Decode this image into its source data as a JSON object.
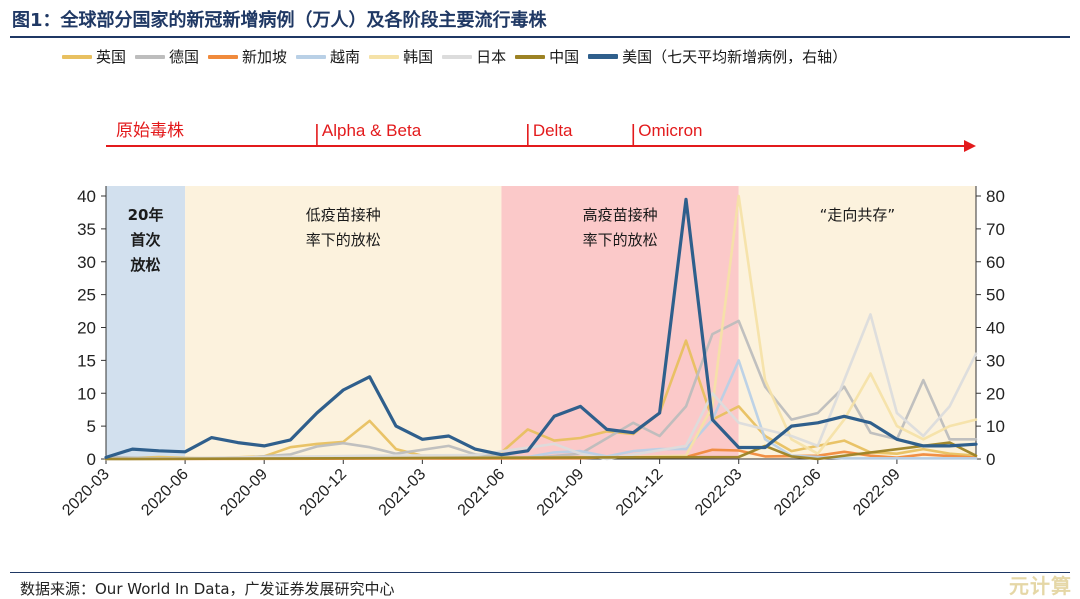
{
  "title": "图1：全球部分国家的新冠新增病例（万人）及各阶段主要流行毒株",
  "source": "数据来源：Our World In Data，广发证券发展研究中心",
  "watermark": "元计算",
  "chart_data": {
    "type": "line",
    "x_unit": "month",
    "x_start": "2020-03",
    "x_end": "2022-12",
    "x_ticks": [
      "2020-03",
      "2020-06",
      "2020-09",
      "2020-12",
      "2021-03",
      "2021-06",
      "2021-09",
      "2021-12",
      "2022-03",
      "2022-06",
      "2022-09"
    ],
    "y_left": {
      "min": 0,
      "max": 40,
      "ticks": [
        0,
        5,
        10,
        15,
        20,
        25,
        30,
        35,
        40
      ]
    },
    "y_right": {
      "min": 0,
      "max": 80,
      "ticks": [
        0,
        10,
        20,
        30,
        40,
        50,
        60,
        70,
        80
      ]
    },
    "grid": false,
    "legend_position": "top",
    "phases": [
      {
        "label": "原始毒株",
        "start": "2020-03"
      },
      {
        "label": "Alpha & Beta",
        "start": "2020-11"
      },
      {
        "label": "Delta",
        "start": "2021-07"
      },
      {
        "label": "Omicron",
        "start": "2021-11"
      }
    ],
    "regions": [
      {
        "start": "2020-03",
        "end": "2020-06",
        "color": "#d2e0ee",
        "lines": [
          "20年",
          "首次",
          "放松"
        ],
        "bold": true
      },
      {
        "start": "2020-06",
        "end": "2021-06",
        "color": "#fcf2dd",
        "lines": [
          "低疫苗接种",
          "率下的放松"
        ],
        "bold": false
      },
      {
        "start": "2021-06",
        "end": "2022-03",
        "color": "#fbc9c9",
        "lines": [
          "高疫苗接种",
          "率下的放松"
        ],
        "bold": false
      },
      {
        "start": "2022-03",
        "end": "2022-12",
        "color": "#fcf2dd",
        "lines": [
          "“走向共存”"
        ],
        "bold": false
      }
    ],
    "series": [
      {
        "name": "英国",
        "color": "#e8c060",
        "axis": "left",
        "points": [
          [
            "2020-03",
            0
          ],
          [
            "2020-05",
            0.3
          ],
          [
            "2020-07",
            0.1
          ],
          [
            "2020-09",
            0.4
          ],
          [
            "2020-10",
            1.8
          ],
          [
            "2020-11",
            2.3
          ],
          [
            "2020-12",
            2.6
          ],
          [
            "2021-01",
            5.8
          ],
          [
            "2021-02",
            1.5
          ],
          [
            "2021-03",
            0.5
          ],
          [
            "2021-05",
            0.3
          ],
          [
            "2021-06",
            1
          ],
          [
            "2021-07",
            4.5
          ],
          [
            "2021-08",
            2.8
          ],
          [
            "2021-09",
            3.2
          ],
          [
            "2021-10",
            4.2
          ],
          [
            "2021-11",
            3.8
          ],
          [
            "2021-12",
            7
          ],
          [
            "2022-01",
            18
          ],
          [
            "2022-02",
            6
          ],
          [
            "2022-03",
            8
          ],
          [
            "2022-04",
            3.5
          ],
          [
            "2022-05",
            1.2
          ],
          [
            "2022-06",
            2
          ],
          [
            "2022-07",
            2.8
          ],
          [
            "2022-08",
            1
          ],
          [
            "2022-09",
            0.8
          ],
          [
            "2022-10",
            1.5
          ],
          [
            "2022-11",
            0.8
          ],
          [
            "2022-12",
            0.5
          ]
        ]
      },
      {
        "name": "德国",
        "color": "#bdbdbd",
        "axis": "left",
        "points": [
          [
            "2020-03",
            0.3
          ],
          [
            "2020-05",
            0.1
          ],
          [
            "2020-08",
            0.1
          ],
          [
            "2020-10",
            0.7
          ],
          [
            "2020-11",
            1.9
          ],
          [
            "2020-12",
            2.4
          ],
          [
            "2021-01",
            1.8
          ],
          [
            "2021-02",
            0.8
          ],
          [
            "2021-04",
            2
          ],
          [
            "2021-05",
            0.7
          ],
          [
            "2021-07",
            0.1
          ],
          [
            "2021-09",
            0.8
          ],
          [
            "2021-11",
            5.5
          ],
          [
            "2021-12",
            3.5
          ],
          [
            "2022-01",
            8
          ],
          [
            "2022-02",
            19
          ],
          [
            "2022-03",
            21
          ],
          [
            "2022-04",
            11
          ],
          [
            "2022-05",
            6
          ],
          [
            "2022-06",
            7
          ],
          [
            "2022-07",
            11
          ],
          [
            "2022-08",
            4
          ],
          [
            "2022-09",
            3
          ],
          [
            "2022-10",
            12
          ],
          [
            "2022-11",
            3
          ],
          [
            "2022-12",
            3
          ]
        ]
      },
      {
        "name": "新加坡",
        "color": "#f08a3c",
        "axis": "left",
        "points": [
          [
            "2020-03",
            0
          ],
          [
            "2021-09",
            0.1
          ],
          [
            "2021-10",
            0.3
          ],
          [
            "2021-11",
            0.3
          ],
          [
            "2022-01",
            0.3
          ],
          [
            "2022-02",
            1.4
          ],
          [
            "2022-03",
            1.3
          ],
          [
            "2022-04",
            0.4
          ],
          [
            "2022-06",
            0.5
          ],
          [
            "2022-07",
            1.1
          ],
          [
            "2022-08",
            0.5
          ],
          [
            "2022-09",
            0.2
          ],
          [
            "2022-10",
            0.7
          ],
          [
            "2022-12",
            0.2
          ]
        ]
      },
      {
        "name": "越南",
        "color": "#b9d0e6",
        "axis": "left",
        "points": [
          [
            "2020-03",
            0
          ],
          [
            "2021-07",
            0.3
          ],
          [
            "2021-08",
            1
          ],
          [
            "2021-09",
            1.2
          ],
          [
            "2021-10",
            0.4
          ],
          [
            "2021-11",
            1.2
          ],
          [
            "2021-12",
            1.5
          ],
          [
            "2022-01",
            1.5
          ],
          [
            "2022-02",
            6
          ],
          [
            "2022-03",
            15
          ],
          [
            "2022-04",
            3
          ],
          [
            "2022-05",
            0.5
          ],
          [
            "2022-07",
            0.1
          ],
          [
            "2022-12",
            0.1
          ]
        ]
      },
      {
        "name": "韩国",
        "color": "#f5e2a8",
        "axis": "left",
        "points": [
          [
            "2020-03",
            0
          ],
          [
            "2021-11",
            0.3
          ],
          [
            "2022-01",
            0.5
          ],
          [
            "2022-02",
            8
          ],
          [
            "2022-03",
            40
          ],
          [
            "2022-04",
            12
          ],
          [
            "2022-05",
            3
          ],
          [
            "2022-06",
            0.8
          ],
          [
            "2022-07",
            6
          ],
          [
            "2022-08",
            13
          ],
          [
            "2022-09",
            5
          ],
          [
            "2022-10",
            3
          ],
          [
            "2022-11",
            5
          ],
          [
            "2022-12",
            6
          ]
        ]
      },
      {
        "name": "日本",
        "color": "#dcdcdc",
        "axis": "left",
        "points": [
          [
            "2020-03",
            0
          ],
          [
            "2021-01",
            0.5
          ],
          [
            "2021-05",
            0.6
          ],
          [
            "2021-08",
            2.3
          ],
          [
            "2021-09",
            0.8
          ],
          [
            "2021-10",
            0
          ],
          [
            "2022-01",
            2
          ],
          [
            "2022-02",
            10
          ],
          [
            "2022-03",
            5.5
          ],
          [
            "2022-04",
            4.5
          ],
          [
            "2022-05",
            3.5
          ],
          [
            "2022-06",
            2
          ],
          [
            "2022-07",
            12
          ],
          [
            "2022-08",
            22
          ],
          [
            "2022-09",
            7
          ],
          [
            "2022-10",
            3.5
          ],
          [
            "2022-11",
            8
          ],
          [
            "2022-12",
            16
          ]
        ]
      },
      {
        "name": "中国",
        "color": "#9c8224",
        "axis": "left",
        "points": [
          [
            "2020-03",
            0
          ],
          [
            "2022-03",
            0.3
          ],
          [
            "2022-04",
            2
          ],
          [
            "2022-05",
            0.4
          ],
          [
            "2022-06",
            0
          ],
          [
            "2022-11",
            2.5
          ],
          [
            "2022-12",
            0.5
          ]
        ]
      },
      {
        "name": "美国（七天平均新增病例，右轴）",
        "color": "#2f5f8c",
        "axis": "right",
        "bold": true,
        "points": [
          [
            "2020-03",
            0.5
          ],
          [
            "2020-04",
            3
          ],
          [
            "2020-05",
            2.5
          ],
          [
            "2020-06",
            2.2
          ],
          [
            "2020-07",
            6.5
          ],
          [
            "2020-08",
            5
          ],
          [
            "2020-09",
            4
          ],
          [
            "2020-10",
            5.8
          ],
          [
            "2020-11",
            14
          ],
          [
            "2020-12",
            21
          ],
          [
            "2021-01",
            25
          ],
          [
            "2021-02",
            10
          ],
          [
            "2021-03",
            6
          ],
          [
            "2021-04",
            7
          ],
          [
            "2021-05",
            3
          ],
          [
            "2021-06",
            1.3
          ],
          [
            "2021-07",
            2.5
          ],
          [
            "2021-08",
            13
          ],
          [
            "2021-09",
            16
          ],
          [
            "2021-10",
            9
          ],
          [
            "2021-11",
            8
          ],
          [
            "2021-12",
            14
          ],
          [
            "2022-01",
            79
          ],
          [
            "2022-02",
            12
          ],
          [
            "2022-03",
            3.5
          ],
          [
            "2022-04",
            3.5
          ],
          [
            "2022-05",
            10
          ],
          [
            "2022-06",
            11
          ],
          [
            "2022-07",
            13
          ],
          [
            "2022-08",
            11
          ],
          [
            "2022-09",
            6
          ],
          [
            "2022-10",
            4
          ],
          [
            "2022-11",
            4
          ],
          [
            "2022-12",
            4.5
          ]
        ]
      }
    ]
  }
}
